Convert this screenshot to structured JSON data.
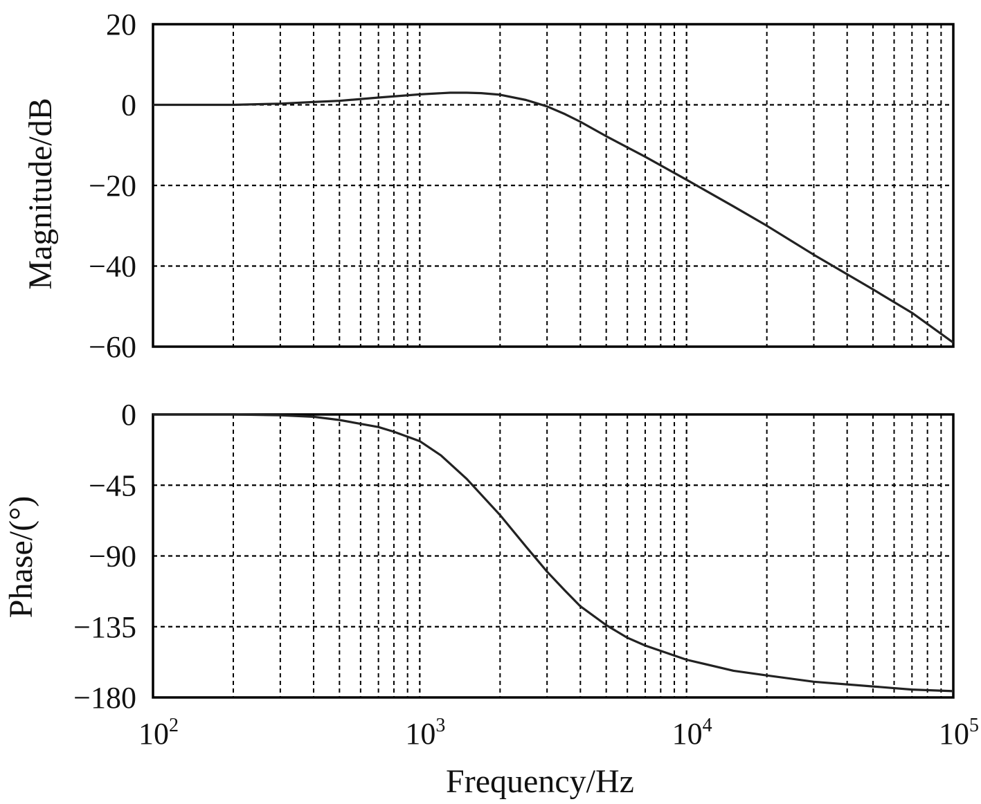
{
  "chart_data": [
    {
      "type": "line",
      "panel": "magnitude",
      "ylabel": "Magnitude/dB",
      "xscale": "log",
      "xlim": [
        100,
        100000
      ],
      "ylim": [
        -60,
        20
      ],
      "yticks": [
        20,
        0,
        -20,
        -40,
        -60
      ],
      "ytick_labels": [
        "20",
        "0",
        "−20",
        "−40",
        "−60"
      ],
      "grid": true,
      "series": [
        {
          "x": [
            100,
            200,
            300,
            400,
            500,
            700,
            1000,
            1300,
            1500,
            1700,
            2000,
            2500,
            3000,
            3500,
            4000,
            5000,
            7000,
            10000,
            15000,
            20000,
            30000,
            50000,
            70000,
            100000
          ],
          "y": [
            0,
            0,
            0.3,
            0.7,
            1.0,
            1.8,
            2.6,
            3.0,
            3.0,
            2.9,
            2.5,
            1.2,
            -0.4,
            -2.3,
            -4.2,
            -7.8,
            -12.9,
            -18.6,
            -25.2,
            -30.0,
            -37.2,
            -45.8,
            -51.6,
            -59.0
          ]
        }
      ]
    },
    {
      "type": "line",
      "panel": "phase",
      "ylabel": "Phase/(°)",
      "xlabel": "Frequency/Hz",
      "xscale": "log",
      "xlim": [
        100,
        100000
      ],
      "ylim": [
        -180,
        0
      ],
      "xticks": [
        100,
        1000,
        10000,
        100000
      ],
      "xtick_base": "10",
      "xtick_exponents": [
        "2",
        "3",
        "4",
        "5"
      ],
      "yticks": [
        0,
        -45,
        -90,
        -135,
        -180
      ],
      "ytick_labels": [
        "0",
        "−45",
        "−90",
        "−135",
        "−180"
      ],
      "grid": true,
      "series": [
        {
          "x": [
            100,
            200,
            300,
            400,
            500,
            600,
            700,
            800,
            1000,
            1200,
            1500,
            2000,
            2500,
            3000,
            3500,
            4000,
            5000,
            6000,
            7000,
            10000,
            15000,
            20000,
            30000,
            50000,
            70000,
            100000
          ],
          "y": [
            0,
            0,
            -0.5,
            -1.5,
            -3.5,
            -6,
            -8,
            -11,
            -17,
            -26,
            -41,
            -64,
            -84,
            -100,
            -112,
            -122,
            -134,
            -142,
            -147,
            -156,
            -163,
            -166,
            -170,
            -173,
            -175,
            -176
          ]
        }
      ]
    }
  ]
}
